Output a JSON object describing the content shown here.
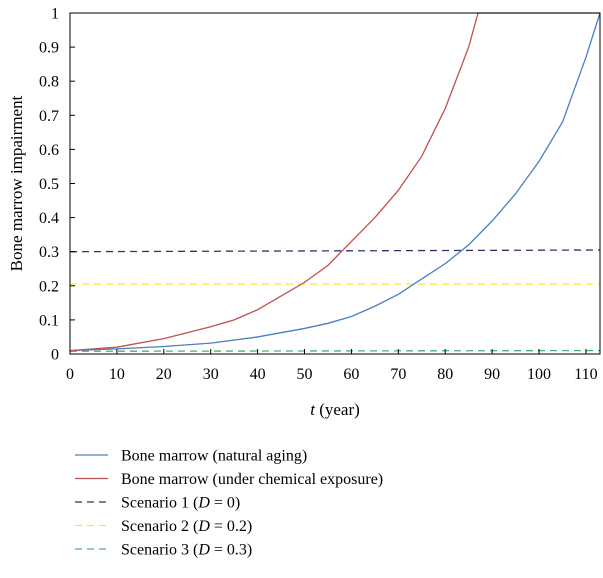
{
  "chart_data": {
    "type": "line",
    "xlabel": "t (year)",
    "xlabel_parts": {
      "var": "t",
      "unit": " (year)"
    },
    "ylabel": "Bone marrow impairment",
    "xlim": [
      0,
      113
    ],
    "ylim": [
      0,
      1
    ],
    "x_ticks": [
      0,
      10,
      20,
      30,
      40,
      50,
      60,
      70,
      80,
      90,
      100,
      110
    ],
    "y_ticks": [
      0,
      0.1,
      0.2,
      0.3,
      0.4,
      0.5,
      0.6,
      0.7,
      0.8,
      0.9,
      1
    ],
    "y_tick_labels": [
      "0",
      "0.1",
      "0.2",
      "0.3",
      "0.4",
      "0.5",
      "0.6",
      "0.7",
      "0.8",
      "0.9",
      "1"
    ],
    "grid": false,
    "legend_position": "below",
    "series": [
      {
        "name": "Bone marrow (natural aging)",
        "color": "#4a7fc1",
        "dash": "solid",
        "x": [
          0,
          10,
          20,
          30,
          40,
          50,
          55,
          60,
          65,
          70,
          75,
          80,
          85,
          90,
          95,
          100,
          105,
          110,
          113
        ],
        "y": [
          0.01,
          0.015,
          0.022,
          0.032,
          0.05,
          0.075,
          0.09,
          0.11,
          0.14,
          0.175,
          0.22,
          0.265,
          0.32,
          0.39,
          0.47,
          0.565,
          0.68,
          0.87,
          1.0
        ]
      },
      {
        "name": "Bone marrow (under chemical exposure)",
        "color": "#c0504d",
        "dash": "solid",
        "x": [
          0,
          10,
          20,
          30,
          35,
          40,
          45,
          50,
          55,
          60,
          65,
          70,
          75,
          80,
          85,
          87,
          113
        ],
        "y": [
          0.01,
          0.02,
          0.045,
          0.08,
          0.1,
          0.13,
          0.17,
          0.21,
          0.26,
          0.33,
          0.4,
          0.48,
          0.58,
          0.72,
          0.9,
          1.0,
          1.0
        ]
      },
      {
        "name": "Scenario 1 (D = 0)",
        "label_parts": {
          "prefix": "Scenario 1 (",
          "var": "D",
          "suffix": " = 0)"
        },
        "color": "#2e3566",
        "dash": "dashed",
        "x": [
          0,
          113
        ],
        "y": [
          0.3,
          0.305
        ]
      },
      {
        "name": "Scenario 2 (D = 0.2)",
        "label_parts": {
          "prefix": "Scenario 2 (",
          "var": "D",
          "suffix": " = 0.2)"
        },
        "color": "#f2ea3a",
        "dash": "dashed",
        "x": [
          0,
          113
        ],
        "y": [
          0.205,
          0.205
        ]
      },
      {
        "name": "Scenario 3 (D = 0.3)",
        "label_parts": {
          "prefix": "Scenario 3 (",
          "var": "D",
          "suffix": " = 0.3)"
        },
        "color": "#4caf7a",
        "dash": "dashed",
        "x": [
          0,
          113
        ],
        "y": [
          0.008,
          0.01
        ]
      }
    ]
  }
}
